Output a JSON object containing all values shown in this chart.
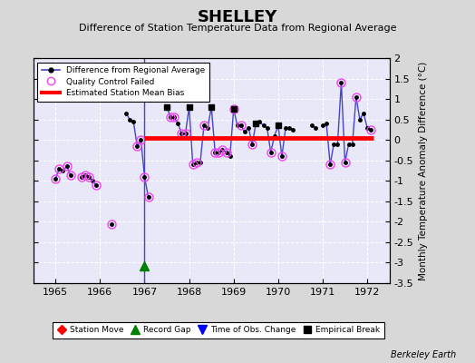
{
  "title": "SHELLEY",
  "subtitle": "Difference of Station Temperature Data from Regional Average",
  "ylabel": "Monthly Temperature Anomaly Difference (°C)",
  "xlim": [
    1964.5,
    1972.5
  ],
  "ylim": [
    -3.5,
    2.0
  ],
  "yticks": [
    2.0,
    1.5,
    1.0,
    0.5,
    0.0,
    -0.5,
    -1.0,
    -1.5,
    -2.0,
    -2.5,
    -3.0,
    -3.5
  ],
  "xticks": [
    1965,
    1966,
    1967,
    1968,
    1969,
    1970,
    1971,
    1972
  ],
  "background_color": "#d8d8d8",
  "plot_bg_color": "#e8e8f8",
  "bias_level": 0.05,
  "bias_x_start": 1967.0,
  "bias_x_end": 1972.15,
  "vertical_line_x": 1967.0,
  "record_gap_x": 1967.0,
  "record_gap_y": -3.08,
  "line_color": "#4444cc",
  "segments": [
    [
      [
        1965.0,
        -0.95
      ],
      [
        1965.083,
        -0.7
      ],
      [
        1965.167,
        -0.75
      ],
      [
        1965.25,
        -0.65
      ],
      [
        1965.333,
        -0.85
      ]
    ],
    [
      [
        1965.583,
        -0.9
      ],
      [
        1965.667,
        -0.85
      ],
      [
        1965.75,
        -0.9
      ],
      [
        1965.833,
        -1.0
      ],
      [
        1965.917,
        -1.1
      ]
    ],
    [
      [
        1966.25,
        -2.05
      ]
    ],
    [
      [
        1966.583,
        0.65
      ],
      [
        1966.667,
        0.5
      ],
      [
        1966.75,
        0.45
      ],
      [
        1966.833,
        -0.15
      ],
      [
        1966.917,
        0.0
      ],
      [
        1967.0,
        -0.9
      ],
      [
        1967.083,
        -1.4
      ]
    ],
    [
      [
        1967.5,
        0.8
      ],
      [
        1967.583,
        0.55
      ],
      [
        1967.667,
        0.55
      ],
      [
        1967.75,
        0.4
      ],
      [
        1967.833,
        0.15
      ],
      [
        1967.917,
        0.15
      ],
      [
        1968.0,
        0.8
      ],
      [
        1968.083,
        -0.6
      ],
      [
        1968.167,
        -0.55
      ],
      [
        1968.25,
        -0.55
      ],
      [
        1968.333,
        0.35
      ],
      [
        1968.417,
        0.3
      ],
      [
        1968.5,
        0.8
      ],
      [
        1968.583,
        -0.3
      ],
      [
        1968.667,
        -0.3
      ],
      [
        1968.75,
        -0.25
      ],
      [
        1968.833,
        -0.3
      ],
      [
        1968.917,
        -0.4
      ],
      [
        1969.0,
        0.75
      ],
      [
        1969.083,
        0.35
      ],
      [
        1969.167,
        0.35
      ],
      [
        1969.25,
        0.2
      ],
      [
        1969.333,
        0.3
      ],
      [
        1969.417,
        -0.1
      ],
      [
        1969.5,
        0.4
      ],
      [
        1969.583,
        0.45
      ],
      [
        1969.667,
        0.35
      ],
      [
        1969.75,
        0.3
      ],
      [
        1969.833,
        -0.3
      ],
      [
        1969.917,
        0.1
      ],
      [
        1970.0,
        0.35
      ],
      [
        1970.083,
        -0.4
      ],
      [
        1970.167,
        0.3
      ],
      [
        1970.25,
        0.3
      ],
      [
        1970.333,
        0.25
      ]
    ],
    [
      [
        1970.75,
        0.35
      ],
      [
        1970.833,
        0.3
      ]
    ],
    [
      [
        1971.0,
        0.35
      ],
      [
        1971.083,
        0.4
      ],
      [
        1971.167,
        -0.6
      ],
      [
        1971.25,
        -0.1
      ],
      [
        1971.333,
        -0.1
      ],
      [
        1971.417,
        1.4
      ],
      [
        1971.5,
        -0.55
      ],
      [
        1971.583,
        -0.1
      ],
      [
        1971.667,
        -0.1
      ],
      [
        1971.75,
        1.05
      ],
      [
        1971.833,
        0.5
      ],
      [
        1971.917,
        0.65
      ],
      [
        1972.0,
        0.3
      ],
      [
        1972.083,
        0.25
      ]
    ]
  ],
  "all_points": [
    [
      1965.0,
      -0.95
    ],
    [
      1965.083,
      -0.7
    ],
    [
      1965.167,
      -0.75
    ],
    [
      1965.25,
      -0.65
    ],
    [
      1965.333,
      -0.85
    ],
    [
      1965.583,
      -0.9
    ],
    [
      1965.667,
      -0.85
    ],
    [
      1965.75,
      -0.9
    ],
    [
      1965.833,
      -1.0
    ],
    [
      1965.917,
      -1.1
    ],
    [
      1966.25,
      -2.05
    ],
    [
      1966.583,
      0.65
    ],
    [
      1966.667,
      0.5
    ],
    [
      1966.75,
      0.45
    ],
    [
      1966.833,
      -0.15
    ],
    [
      1966.917,
      0.0
    ],
    [
      1967.0,
      -0.9
    ],
    [
      1967.083,
      -1.4
    ],
    [
      1967.5,
      0.8
    ],
    [
      1967.583,
      0.55
    ],
    [
      1967.667,
      0.55
    ],
    [
      1967.75,
      0.4
    ],
    [
      1967.833,
      0.15
    ],
    [
      1967.917,
      0.15
    ],
    [
      1968.0,
      0.8
    ],
    [
      1968.083,
      -0.6
    ],
    [
      1968.167,
      -0.55
    ],
    [
      1968.25,
      -0.55
    ],
    [
      1968.333,
      0.35
    ],
    [
      1968.417,
      0.3
    ],
    [
      1968.5,
      0.8
    ],
    [
      1968.583,
      -0.3
    ],
    [
      1968.667,
      -0.3
    ],
    [
      1968.75,
      -0.25
    ],
    [
      1968.833,
      -0.3
    ],
    [
      1968.917,
      -0.4
    ],
    [
      1969.0,
      0.75
    ],
    [
      1969.083,
      0.35
    ],
    [
      1969.167,
      0.35
    ],
    [
      1969.25,
      0.2
    ],
    [
      1969.333,
      0.3
    ],
    [
      1969.417,
      -0.1
    ],
    [
      1969.5,
      0.4
    ],
    [
      1969.583,
      0.45
    ],
    [
      1969.667,
      0.35
    ],
    [
      1969.75,
      0.3
    ],
    [
      1969.833,
      -0.3
    ],
    [
      1969.917,
      0.1
    ],
    [
      1970.0,
      0.35
    ],
    [
      1970.083,
      -0.4
    ],
    [
      1970.167,
      0.3
    ],
    [
      1970.25,
      0.3
    ],
    [
      1970.333,
      0.25
    ],
    [
      1970.75,
      0.35
    ],
    [
      1970.833,
      0.3
    ],
    [
      1971.0,
      0.35
    ],
    [
      1971.083,
      0.4
    ],
    [
      1971.167,
      -0.6
    ],
    [
      1971.25,
      -0.1
    ],
    [
      1971.333,
      -0.1
    ],
    [
      1971.417,
      1.4
    ],
    [
      1971.5,
      -0.55
    ],
    [
      1971.583,
      -0.1
    ],
    [
      1971.667,
      -0.1
    ],
    [
      1971.75,
      1.05
    ],
    [
      1971.833,
      0.5
    ],
    [
      1971.917,
      0.65
    ],
    [
      1972.0,
      0.3
    ],
    [
      1972.083,
      0.25
    ]
  ],
  "qc_failed": [
    [
      1965.0,
      -0.95
    ],
    [
      1965.083,
      -0.7
    ],
    [
      1965.25,
      -0.65
    ],
    [
      1965.333,
      -0.85
    ],
    [
      1965.583,
      -0.9
    ],
    [
      1965.667,
      -0.85
    ],
    [
      1965.75,
      -0.9
    ],
    [
      1965.917,
      -1.1
    ],
    [
      1966.25,
      -2.05
    ],
    [
      1966.833,
      -0.15
    ],
    [
      1966.917,
      0.0
    ],
    [
      1967.0,
      -0.9
    ],
    [
      1967.083,
      -1.4
    ],
    [
      1967.583,
      0.55
    ],
    [
      1967.667,
      0.55
    ],
    [
      1967.833,
      0.15
    ],
    [
      1967.917,
      0.15
    ],
    [
      1968.083,
      -0.6
    ],
    [
      1968.167,
      -0.55
    ],
    [
      1968.333,
      0.35
    ],
    [
      1968.583,
      -0.3
    ],
    [
      1968.667,
      -0.3
    ],
    [
      1968.75,
      -0.25
    ],
    [
      1968.833,
      -0.3
    ],
    [
      1969.0,
      0.75
    ],
    [
      1969.167,
      0.35
    ],
    [
      1969.417,
      -0.1
    ],
    [
      1969.833,
      -0.3
    ],
    [
      1970.083,
      -0.4
    ],
    [
      1971.167,
      -0.6
    ],
    [
      1971.417,
      1.4
    ],
    [
      1971.5,
      -0.55
    ],
    [
      1971.75,
      1.05
    ],
    [
      1972.083,
      0.25
    ]
  ],
  "empirical_breaks": [
    [
      1967.5,
      0.8
    ],
    [
      1968.0,
      0.8
    ],
    [
      1968.5,
      0.8
    ],
    [
      1969.0,
      0.75
    ],
    [
      1969.5,
      0.4
    ],
    [
      1970.0,
      0.35
    ]
  ],
  "watermark": "Berkeley Earth"
}
